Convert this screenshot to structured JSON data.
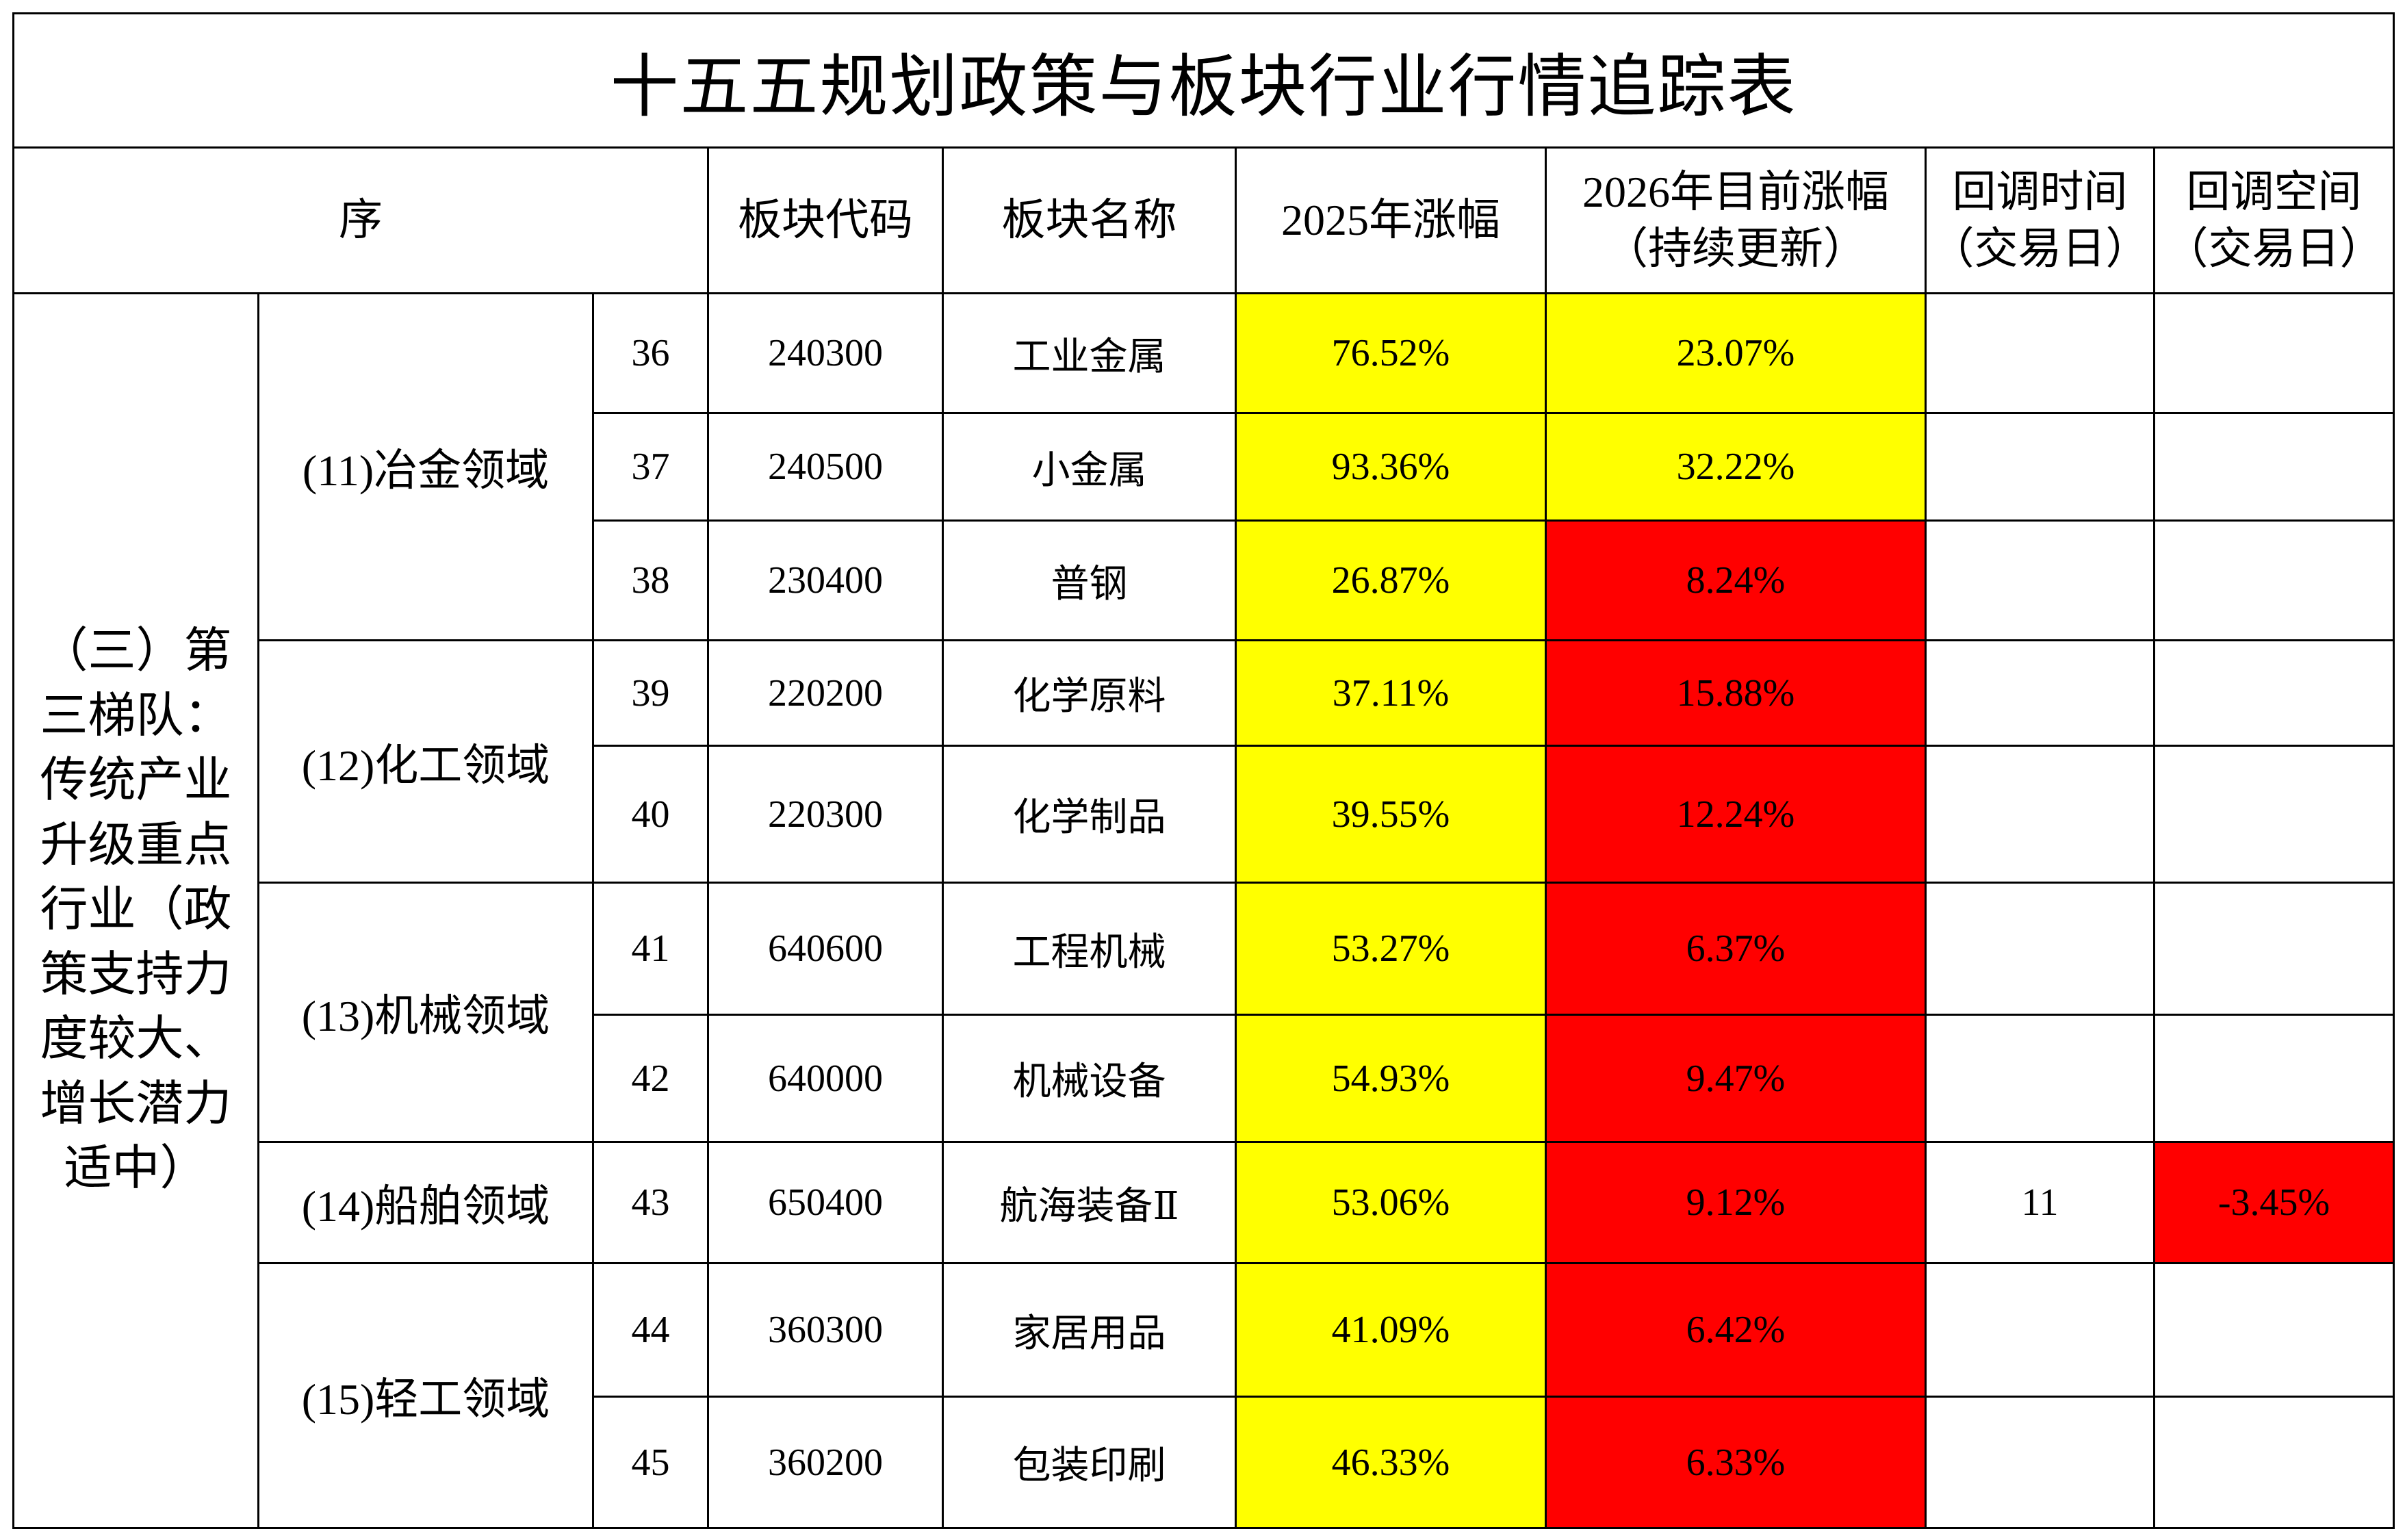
{
  "title": "十五五规划政策与板块行业行情追踪表",
  "headers": {
    "seq": "序",
    "code": "板块代码",
    "name": "板块名称",
    "gain2025": "2025年涨幅",
    "gain2026_l1": "2026年目前涨幅",
    "gain2026_l2": "（持续更新）",
    "pullback_time_l1": "回调时间",
    "pullback_time_l2": "（交易日）",
    "pullback_space_l1": "回调空间",
    "pullback_space_l2": "（交易日）"
  },
  "tier": "（三）第三梯队：传统产业升级重点行业（政策支持力度较大、增长潜力适中）",
  "colors": {
    "yellow": "#ffff00",
    "red": "#ff0000"
  },
  "groups": [
    {
      "label": "(11)冶金领域",
      "rows": [
        {
          "no": "36",
          "code": "240300",
          "name": "工业金属",
          "g2025": "76.52%",
          "g2026": "23.07%",
          "g2026_color": "yellow",
          "pb_time": "",
          "pb_space": ""
        },
        {
          "no": "37",
          "code": "240500",
          "name": "小金属",
          "g2025": "93.36%",
          "g2026": "32.22%",
          "g2026_color": "yellow",
          "pb_time": "",
          "pb_space": ""
        },
        {
          "no": "38",
          "code": "230400",
          "name": "普钢",
          "g2025": "26.87%",
          "g2026": "8.24%",
          "g2026_color": "red",
          "pb_time": "",
          "pb_space": ""
        }
      ]
    },
    {
      "label": "(12)化工领域",
      "rows": [
        {
          "no": "39",
          "code": "220200",
          "name": "化学原料",
          "g2025": "37.11%",
          "g2026": "15.88%",
          "g2026_color": "red",
          "pb_time": "",
          "pb_space": ""
        },
        {
          "no": "40",
          "code": "220300",
          "name": "化学制品",
          "g2025": "39.55%",
          "g2026": "12.24%",
          "g2026_color": "red",
          "pb_time": "",
          "pb_space": ""
        }
      ]
    },
    {
      "label": "(13)机械领域",
      "rows": [
        {
          "no": "41",
          "code": "640600",
          "name": "工程机械",
          "g2025": "53.27%",
          "g2026": "6.37%",
          "g2026_color": "red",
          "pb_time": "",
          "pb_space": ""
        },
        {
          "no": "42",
          "code": "640000",
          "name": "机械设备",
          "g2025": "54.93%",
          "g2026": "9.47%",
          "g2026_color": "red",
          "pb_time": "",
          "pb_space": ""
        }
      ]
    },
    {
      "label": "(14)船舶领域",
      "rows": [
        {
          "no": "43",
          "code": "650400",
          "name": "航海装备Ⅱ",
          "g2025": "53.06%",
          "g2026": "9.12%",
          "g2026_color": "red",
          "pb_time": "11",
          "pb_space": "-3.45%",
          "pb_space_color": "red"
        }
      ]
    },
    {
      "label": "(15)轻工领域",
      "rows": [
        {
          "no": "44",
          "code": "360300",
          "name": "家居用品",
          "g2025": "41.09%",
          "g2026": "6.42%",
          "g2026_color": "red",
          "pb_time": "",
          "pb_space": ""
        },
        {
          "no": "45",
          "code": "360200",
          "name": "包装印刷",
          "g2025": "46.33%",
          "g2026": "6.33%",
          "g2026_color": "red",
          "pb_time": "",
          "pb_space": ""
        }
      ]
    }
  ]
}
